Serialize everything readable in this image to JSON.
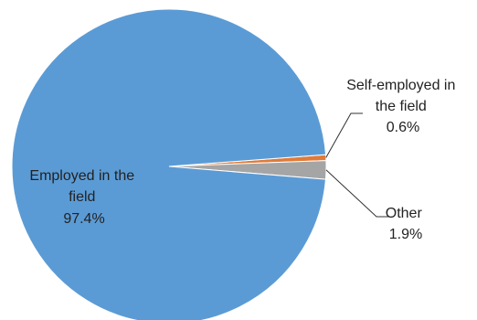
{
  "chart_data": {
    "type": "pie",
    "title": "",
    "slices": [
      {
        "label_lines": [
          "Self-employed in",
          "the field"
        ],
        "value": 0.6,
        "value_text": "0.6%",
        "color": "#E07B39"
      },
      {
        "label_lines": [
          "Other"
        ],
        "value": 1.9,
        "value_text": "1.9%",
        "color": "#A5A5A5"
      },
      {
        "label_lines": [
          "Employed in the",
          "field"
        ],
        "value": 97.4,
        "value_text": "97.4%",
        "color": "#5B9BD5"
      }
    ],
    "legend": "none",
    "slice_border_color": "#ffffff"
  }
}
